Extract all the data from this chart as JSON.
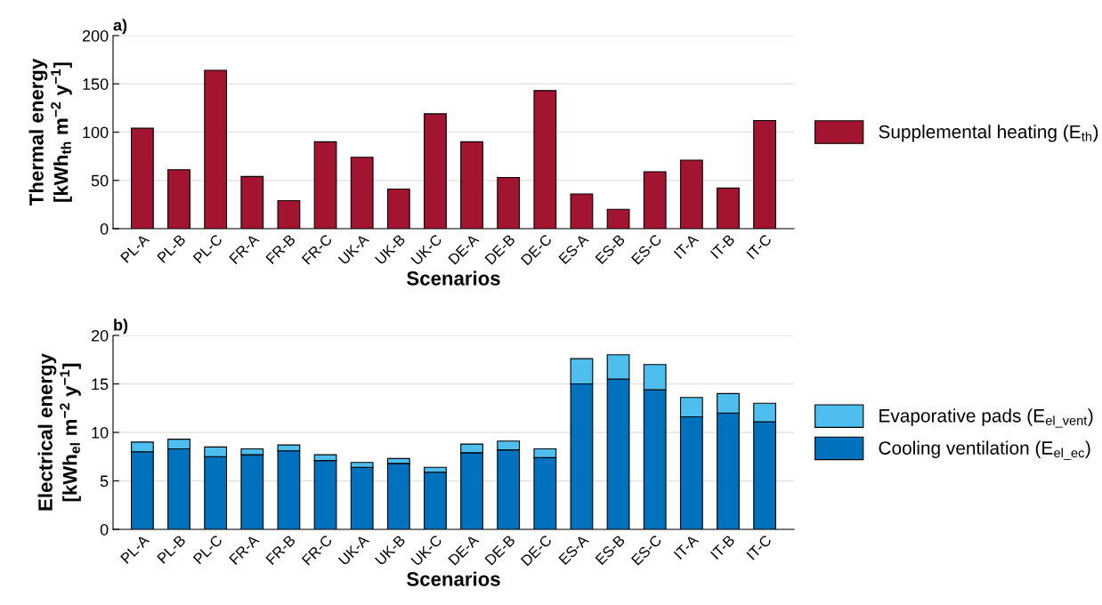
{
  "chart_data": [
    {
      "type": "bar",
      "title": "a)",
      "xlabel": "Scenarios",
      "ylabel": "Thermal energy\n[kWh$_{th}$ m$^{−2}$ y$^{−1}$]",
      "categories": [
        "PL-A",
        "PL-B",
        "PL-C",
        "FR-A",
        "FR-B",
        "FR-C",
        "UK-A",
        "UK-B",
        "UK-C",
        "DE-A",
        "DE-B",
        "DE-C",
        "ES-A",
        "ES-B",
        "ES-C",
        "IT-A",
        "IT-B",
        "IT-C"
      ],
      "series": [
        {
          "name": "Supplemental heating (E$_{th}$)",
          "color": "#a31430",
          "values": [
            104,
            61,
            164,
            54,
            29,
            90,
            74,
            41,
            119,
            90,
            53,
            143,
            36,
            20,
            59,
            71,
            42,
            112
          ]
        }
      ],
      "ylim": [
        0,
        200
      ],
      "yticks": [
        0,
        50,
        100,
        150,
        200
      ],
      "grid": "y",
      "legend": "right"
    },
    {
      "type": "bar",
      "title": "b)",
      "xlabel": "Scenarios",
      "ylabel": "Electrical energy\n[kWh$_{el}$ m$^{−2}$ y$^{−1}$]",
      "stacked": true,
      "categories": [
        "PL-A",
        "PL-B",
        "PL-C",
        "FR-A",
        "FR-B",
        "FR-C",
        "UK-A",
        "UK-B",
        "UK-C",
        "DE-A",
        "DE-B",
        "DE-C",
        "ES-A",
        "ES-B",
        "ES-C",
        "IT-A",
        "IT-B",
        "IT-C"
      ],
      "series": [
        {
          "name": "Cooling ventilation (E$_{el_ec}$)",
          "color": "#0072bd",
          "values": [
            8.0,
            8.3,
            7.5,
            7.7,
            8.1,
            7.1,
            6.4,
            6.8,
            5.9,
            7.9,
            8.2,
            7.4,
            15.0,
            15.5,
            14.4,
            11.6,
            12.0,
            11.1
          ]
        },
        {
          "name": "Evaporative pads (E$_{el_vent}$)",
          "color": "#4dbeee",
          "values": [
            1.0,
            1.0,
            1.0,
            0.6,
            0.6,
            0.6,
            0.5,
            0.5,
            0.5,
            0.9,
            0.9,
            0.9,
            2.6,
            2.5,
            2.6,
            2.0,
            2.0,
            1.9
          ]
        }
      ],
      "ylim": [
        0,
        20
      ],
      "yticks": [
        0,
        5,
        10,
        15,
        20
      ],
      "grid": "y",
      "legend": "right"
    }
  ]
}
